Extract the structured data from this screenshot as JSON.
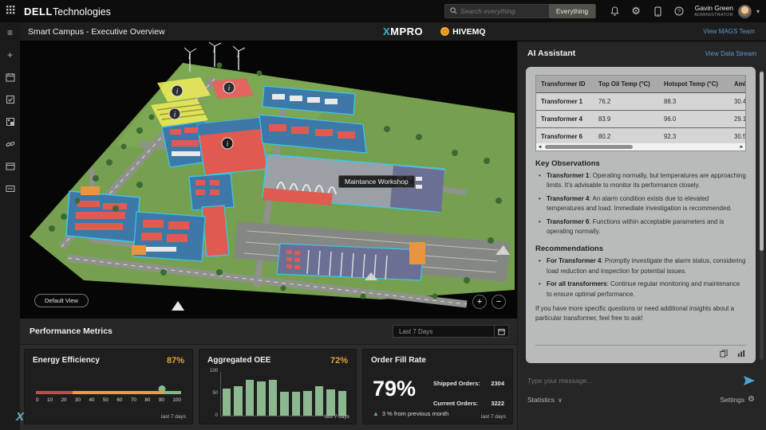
{
  "colors": {
    "accent-blue": "#4da3d8",
    "accent-orange": "#e2a33d",
    "green": "#8cb88f",
    "bubble": "#b9bbba"
  },
  "topbar": {
    "brand_bold": "DELL",
    "brand_light": "Technologies",
    "search_placeholder": "Search everything",
    "scope_button": "Everything",
    "user_name": "Gavin Green",
    "user_role": "ADMINISTRATOR"
  },
  "header": {
    "title": "Smart Campus - Executive Overview",
    "logo_xmpro_x": "X",
    "logo_xmpro_rest": "MPRO",
    "logo_hivemq": "HIVEMQ",
    "view_team_link": "View MAGS Team"
  },
  "viewer": {
    "tooltip": "Maintance Workshop",
    "default_view_button": "Default View",
    "zoom_in": "+",
    "zoom_out": "−"
  },
  "assistant": {
    "title": "AI Assistant",
    "view_stream_link": "View Data Stream",
    "table": {
      "columns": [
        "Transformer ID",
        "Top Oil Temp (°C)",
        "Hotspot Temp (°C)",
        "Ambient Temp (°C)"
      ],
      "rows": [
        [
          "Transformer 1",
          "76.2",
          "88.3",
          "30.4"
        ],
        [
          "Transformer 4",
          "83.9",
          "96.0",
          "29.1"
        ],
        [
          "Transformer 6",
          "80.2",
          "92.3",
          "30.5"
        ]
      ]
    },
    "observations_title": "Key Observations",
    "observations": [
      {
        "label": "Transformer 1",
        "text": ": Operating normally, but temperatures are approaching limits. It's advisable to monitor its performance closely."
      },
      {
        "label": "Transformer 4",
        "text": ": An alarm condition exists due to elevated temperatures and load. Immediate investigation is recommended."
      },
      {
        "label": "Transformer 6",
        "text": ": Functions within acceptable parameters and is operating normally."
      }
    ],
    "recommendations_title": "Recommendations",
    "recommendations": [
      {
        "label": "For Transformer 4",
        "text": ": Promptly investigate the alarm status, considering load reduction and inspection for potential issues."
      },
      {
        "label": "For all transformers",
        "text": ": Continue regular monitoring and maintenance to ensure optimal performance."
      }
    ],
    "closing_text": "If you have more specific questions or need additional insights about a particular transformer, feel free to ask!",
    "input_placeholder": "Type your message...",
    "statistics_label": "Statistics",
    "settings_label": "Settings"
  },
  "metrics": {
    "section_title": "Performance Metrics",
    "range_selector": "Last 7 Days",
    "footnote": "last 7 days"
  },
  "chart_data": [
    {
      "type": "gauge",
      "title": "Energy Efficiency",
      "value": 87,
      "value_label": "87%",
      "axis_ticks": [
        0,
        10,
        20,
        30,
        40,
        50,
        60,
        70,
        80,
        90,
        100
      ],
      "xlim": [
        0,
        100
      ],
      "segments": [
        {
          "from": 0,
          "to": 25,
          "color": "#b5524e"
        },
        {
          "from": 25,
          "to": 88,
          "color": "#e0a23f"
        },
        {
          "from": 88,
          "to": 100,
          "color": "#84b48a"
        }
      ],
      "footnote": "last 7 days"
    },
    {
      "type": "bar",
      "title": "Aggregated OEE",
      "value_label": "72%",
      "values": [
        62,
        68,
        82,
        79,
        82,
        54,
        55,
        57,
        67,
        60,
        57
      ],
      "ylim": [
        0,
        100
      ],
      "yticks": [
        0,
        50,
        100
      ],
      "footnote": "last 7 days"
    },
    {
      "type": "kpi",
      "title": "Order Fill Rate",
      "value_label": "79%",
      "delta": "3 % from previous month",
      "stats": [
        {
          "label": "Shipped Orders:",
          "value": "2304"
        },
        {
          "label": "Current Orders:",
          "value": "3222"
        }
      ],
      "footnote": "last 7 days"
    }
  ]
}
